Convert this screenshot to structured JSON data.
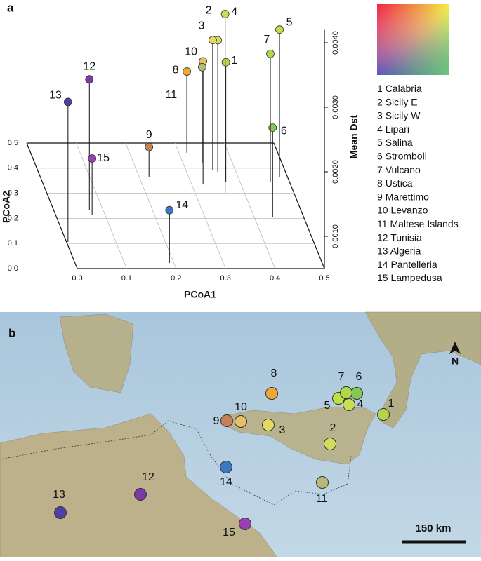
{
  "panel_a": {
    "label": "a",
    "chart_data": {
      "type": "scatter3d",
      "xlabel": "PCoA1",
      "ylabel": "PCoA2",
      "zlabel": "Mean Dst",
      "xlim": [
        0,
        0.5
      ],
      "ylim": [
        0,
        0.5
      ],
      "zlim": [
        0.0005,
        0.0042
      ],
      "xticks": [
        {
          "value": 0,
          "label": "0.0"
        },
        0.1,
        0.2,
        0.3,
        0.4,
        0.5
      ],
      "yticks": [
        {
          "value": 0,
          "label": "0.0"
        },
        0.1,
        0.2,
        0.3,
        0.4,
        0.5
      ],
      "zticks": [
        {
          "value": 0.001,
          "label": "0.0010"
        },
        {
          "value": 0.002,
          "label": "0.0020"
        },
        {
          "value": 0.003,
          "label": "0.0030"
        },
        {
          "value": 0.004,
          "label": "0.0040"
        }
      ],
      "points": [
        {
          "label": "1",
          "name": "Calabria",
          "color": "#b5d44c",
          "x": 0.371,
          "y": 0.344,
          "z": 0.00236
        },
        {
          "label": "2",
          "name": "Sicily E",
          "color": "#d4dc5e",
          "x": 0.363,
          "y": 0.385,
          "z": 0.00254
        },
        {
          "label": "3",
          "name": "Sicily W",
          "color": "#e2d862",
          "x": 0.354,
          "y": 0.391,
          "z": 0.00252
        },
        {
          "label": "4",
          "name": "Lipari",
          "color": "#c6e052",
          "x": 0.361,
          "y": 0.302,
          "z": 0.00327
        },
        {
          "label": "5",
          "name": "Salina",
          "color": "#bde044",
          "x": 0.484,
          "y": 0.366,
          "z": 0.00278
        },
        {
          "label": "6",
          "name": "Stromboli",
          "color": "#84c852",
          "x": 0.437,
          "y": 0.204,
          "z": 0.00189
        },
        {
          "label": "7",
          "name": "Vulcano",
          "color": "#b0d84a",
          "x": 0.461,
          "y": 0.344,
          "z": 0.00249
        },
        {
          "label": "8",
          "name": "Ustica",
          "color": "#f0a832",
          "x": 0.316,
          "y": 0.461,
          "z": 0.00176
        },
        {
          "label": "9",
          "name": "Marettimo",
          "color": "#c8805a",
          "x": 0.22,
          "y": 0.366,
          "z": 0.00096
        },
        {
          "label": "10",
          "name": "Levanzo",
          "color": "#e6c064",
          "x": 0.323,
          "y": 0.335,
          "z": 0.00241
        },
        {
          "label": "11",
          "name": "Maltese Islands",
          "color": "#b8b87a",
          "x": 0.339,
          "y": 0.422,
          "z": 0.00198
        },
        {
          "label": "12",
          "name": "Tunisia",
          "color": "#7a3aa4",
          "x": 0.072,
          "y": 0.232,
          "z": 0.00253
        },
        {
          "label": "13",
          "name": "Algeria",
          "color": "#5040a2",
          "x": 0.003,
          "y": 0.106,
          "z": 0.00267
        },
        {
          "label": "14",
          "name": "Pantelleria",
          "color": "#3a78c2",
          "x": 0.191,
          "y": 0.022,
          "z": 0.00132
        },
        {
          "label": "15",
          "name": "Lampedusa",
          "color": "#9a40b4",
          "x": 0.074,
          "y": 0.215,
          "z": 0.00137
        }
      ]
    }
  },
  "panel_b": {
    "label": "b",
    "north": "N",
    "scale": "150 km"
  }
}
